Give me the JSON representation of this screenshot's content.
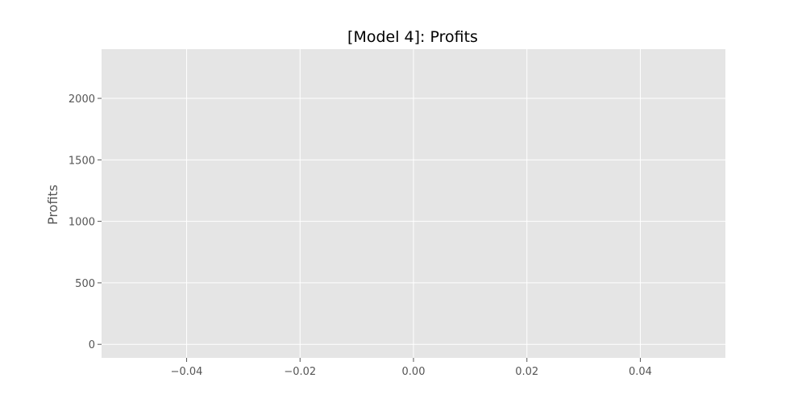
{
  "chart_data": {
    "type": "line",
    "title": "[Model 4]: Profits",
    "xlabel": "",
    "ylabel": "Profits",
    "xlim": [
      -0.055,
      0.055
    ],
    "ylim": [
      -110,
      2400
    ],
    "x_ticks": [
      -0.04,
      -0.02,
      0.0,
      0.02,
      0.04
    ],
    "x_tick_labels": [
      "−0.04",
      "−0.02",
      "0.00",
      "0.02",
      "0.04"
    ],
    "y_ticks": [
      0,
      500,
      1000,
      1500,
      2000
    ],
    "y_tick_labels": [
      "0",
      "500",
      "1000",
      "1500",
      "2000"
    ],
    "grid": true,
    "series": [],
    "colors": {
      "plot_background": "#e5e5e5",
      "grid": "#ffffff",
      "tick_text": "#555555"
    }
  }
}
